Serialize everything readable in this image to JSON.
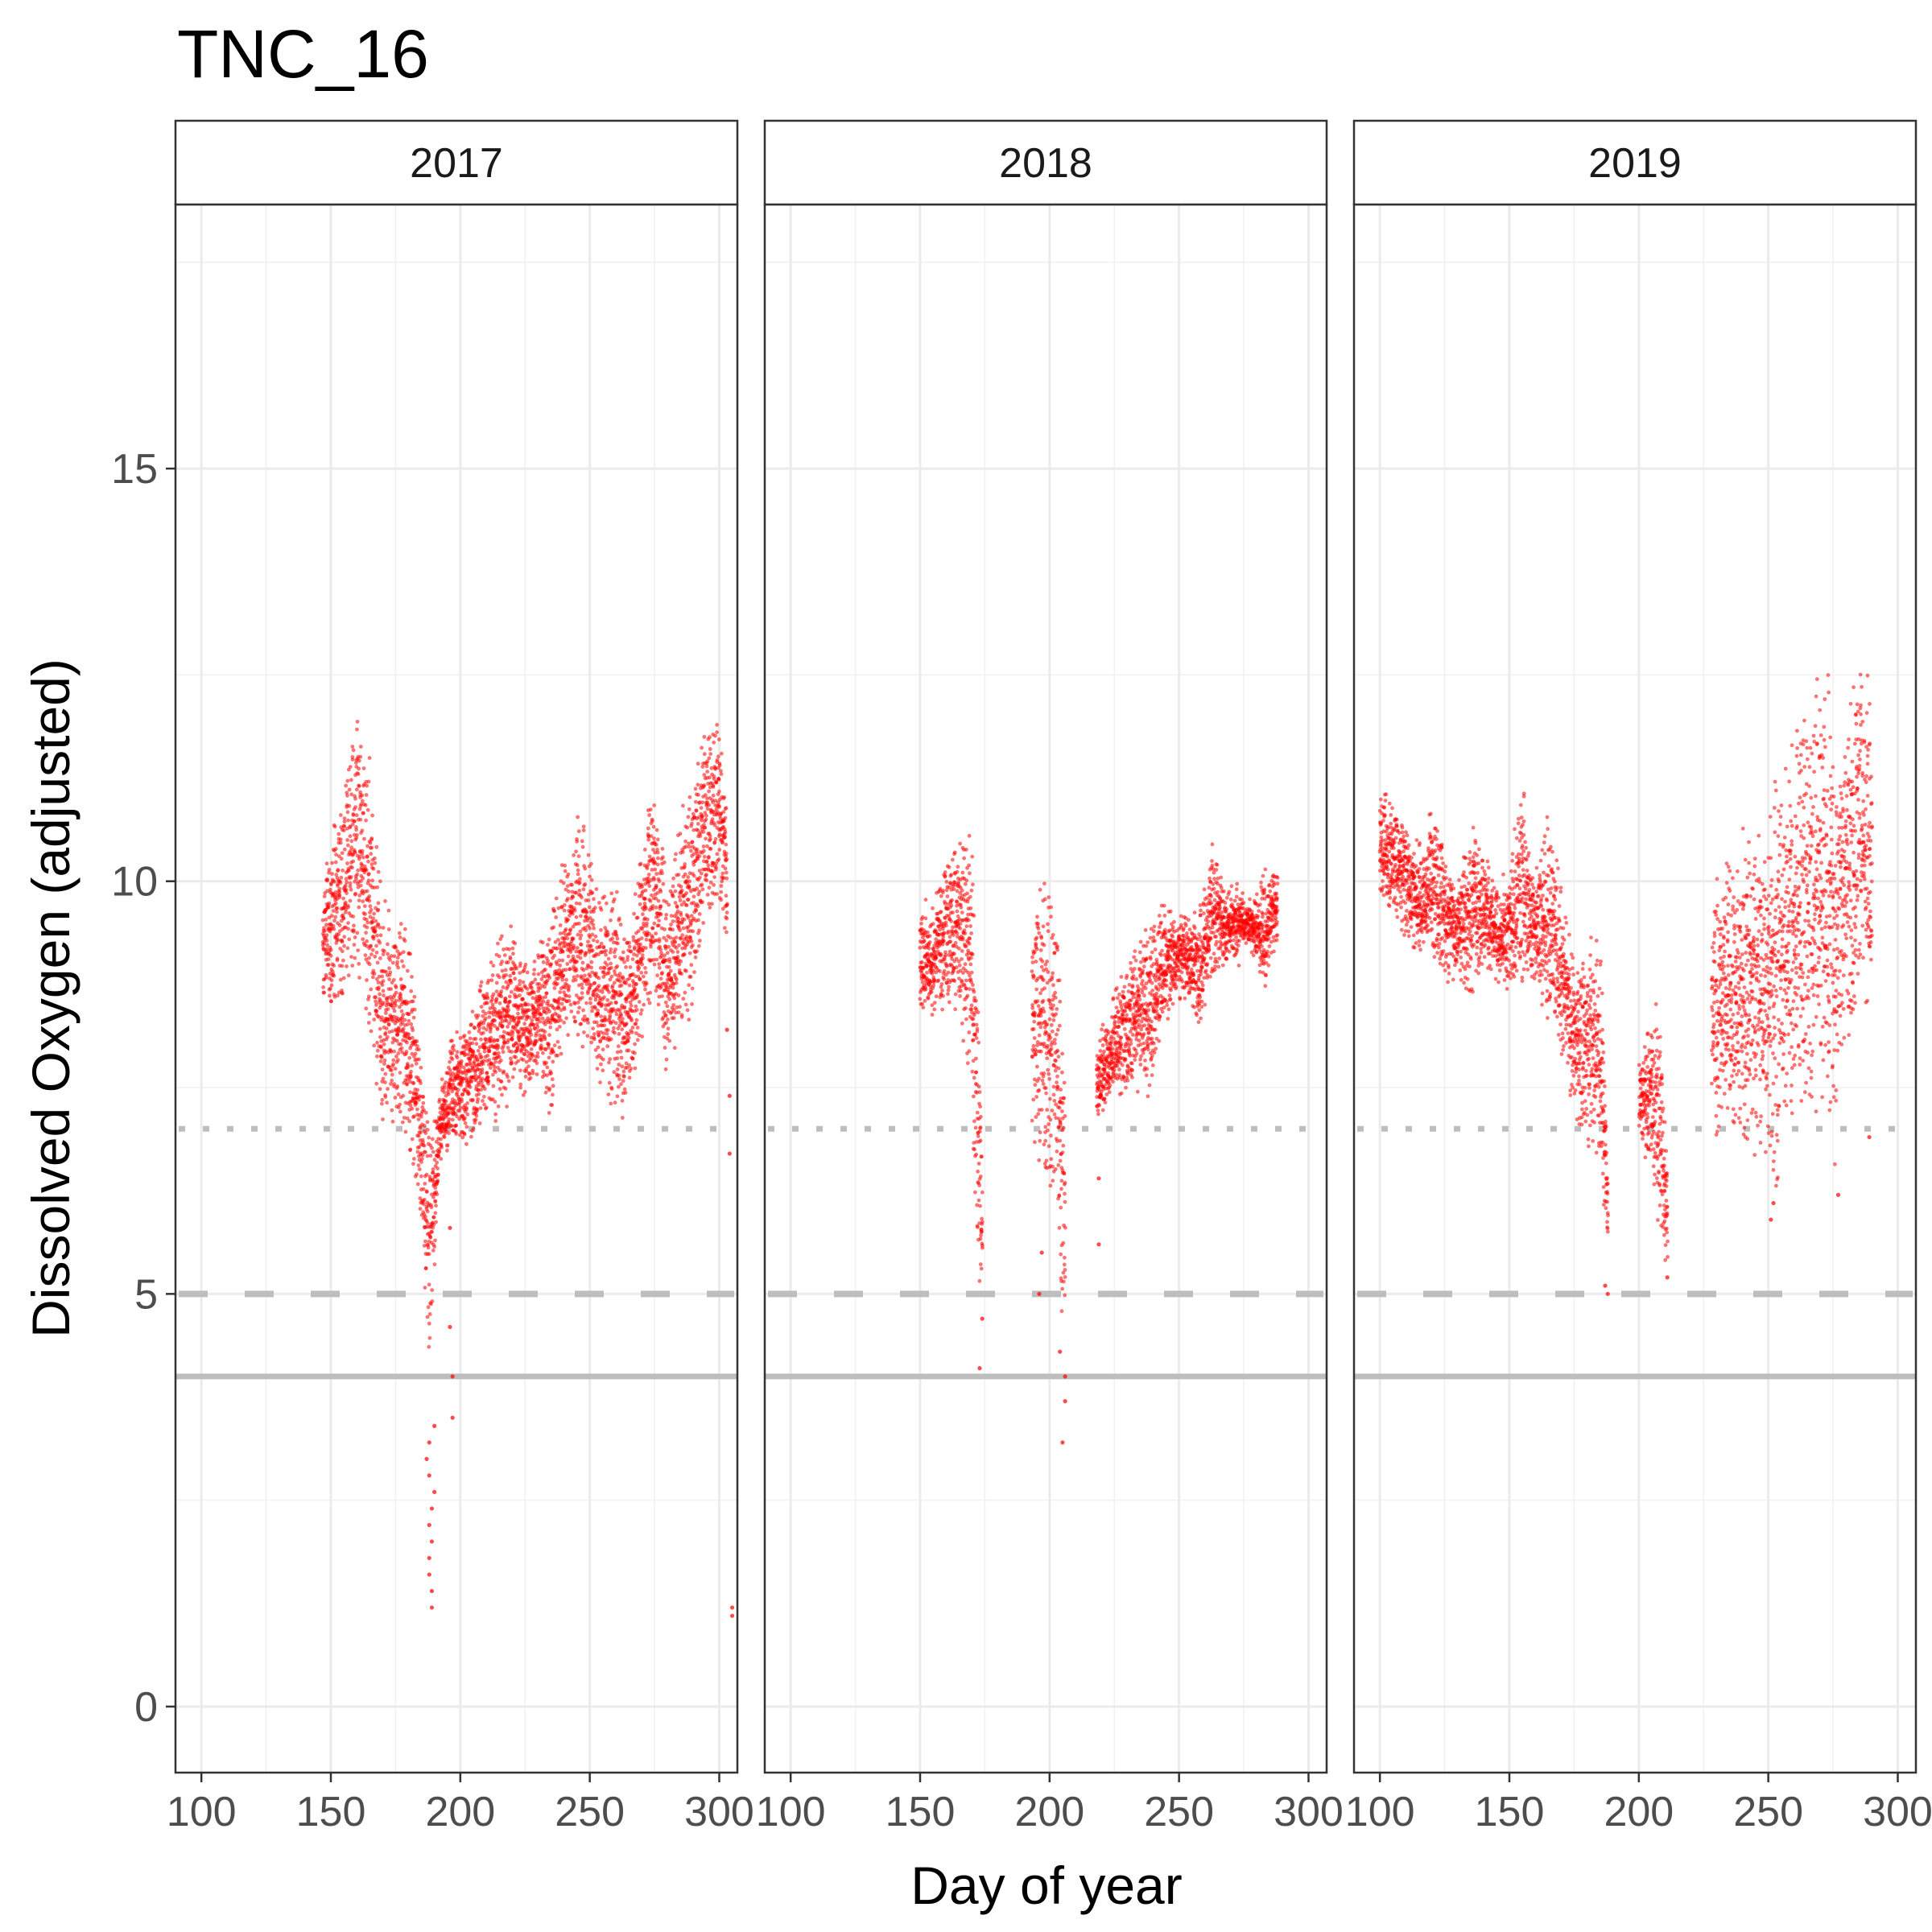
{
  "chart_data": {
    "type": "scatter",
    "title": "TNC_16",
    "xlabel": "Day of year",
    "ylabel": "Dissolved Oxygen (adjusted)",
    "xlim": [
      90,
      307
    ],
    "ylim": [
      -0.8,
      18.2
    ],
    "x_ticks": [
      100,
      150,
      200,
      250,
      300
    ],
    "y_ticks": [
      0,
      5,
      10,
      15
    ],
    "grid": true,
    "point_color": "#ff0000",
    "reference_lines": [
      {
        "y": 7,
        "style": "dotted",
        "color": "#bebebe"
      },
      {
        "y": 5,
        "style": "dashed",
        "color": "#bebebe"
      },
      {
        "y": 4,
        "style": "solid",
        "color": "#bebebe"
      }
    ],
    "panels": [
      {
        "label": "2017",
        "x_range": [
          147,
          303
        ],
        "envelope": [
          [
            147,
            8.5,
            10.0
          ],
          [
            150,
            8.2,
            10.8
          ],
          [
            155,
            8.4,
            11.3
          ],
          [
            160,
            9.0,
            12.3
          ],
          [
            165,
            8.0,
            11.5
          ],
          [
            170,
            6.8,
            10.0
          ],
          [
            175,
            7.0,
            9.5
          ],
          [
            180,
            6.8,
            9.7
          ],
          [
            185,
            5.8,
            8.0
          ],
          [
            188,
            4.0,
            7.2
          ],
          [
            192,
            6.5,
            7.5
          ],
          [
            197,
            6.8,
            8.2
          ],
          [
            205,
            6.8,
            8.5
          ],
          [
            210,
            7.0,
            9.0
          ],
          [
            215,
            7.0,
            9.5
          ],
          [
            220,
            7.2,
            9.6
          ],
          [
            225,
            7.2,
            9.0
          ],
          [
            230,
            7.5,
            9.4
          ],
          [
            235,
            7.0,
            9.8
          ],
          [
            240,
            7.8,
            10.4
          ],
          [
            245,
            8.0,
            10.9
          ],
          [
            250,
            8.0,
            10.5
          ],
          [
            255,
            7.2,
            10.0
          ],
          [
            260,
            7.0,
            10.0
          ],
          [
            265,
            7.2,
            9.5
          ],
          [
            270,
            8.0,
            10.5
          ],
          [
            275,
            8.5,
            11.5
          ],
          [
            280,
            7.5,
            10.0
          ],
          [
            285,
            8.0,
            10.8
          ],
          [
            290,
            8.5,
            11.5
          ],
          [
            295,
            9.5,
            12.0
          ],
          [
            300,
            9.5,
            12.2
          ],
          [
            303,
            9.0,
            11.0
          ]
        ],
        "outliers": [
          [
            188,
            2.8
          ],
          [
            188,
            2.2
          ],
          [
            188,
            1.8
          ],
          [
            189,
            1.2
          ],
          [
            189,
            1.4
          ],
          [
            188,
            3.2
          ],
          [
            190,
            3.4
          ],
          [
            190,
            2.6
          ],
          [
            188,
            1.6
          ],
          [
            189,
            2.0
          ],
          [
            187,
            3.0
          ],
          [
            189,
            2.4
          ],
          [
            195,
            6.8
          ],
          [
            196,
            5.8
          ],
          [
            196,
            4.6
          ],
          [
            197,
            4.0
          ],
          [
            197,
            3.5
          ],
          [
            303,
            8.2
          ],
          [
            304,
            7.4
          ],
          [
            304,
            6.7
          ],
          [
            305,
            1.2
          ],
          [
            305,
            1.1
          ]
        ]
      },
      {
        "label": "2018",
        "x_range": [
          150,
          288
        ],
        "envelope": [
          [
            150,
            8.3,
            9.7
          ],
          [
            155,
            8.3,
            9.8
          ],
          [
            160,
            8.3,
            10.5
          ],
          [
            165,
            8.5,
            10.6
          ],
          [
            170,
            7.0,
            10.9
          ],
          [
            172,
            5.5,
            9.0
          ],
          [
            174,
            4.5,
            7.0
          ],
          [
            193,
            6.5,
            10.0
          ],
          [
            198,
            6.3,
            10.4
          ],
          [
            203,
            5.5,
            9.8
          ],
          [
            206,
            4.2,
            7.5
          ],
          [
            218,
            7.0,
            8.0
          ],
          [
            222,
            7.2,
            8.4
          ],
          [
            228,
            7.3,
            9.0
          ],
          [
            233,
            7.5,
            9.3
          ],
          [
            238,
            7.2,
            9.6
          ],
          [
            243,
            8.0,
            9.8
          ],
          [
            248,
            8.5,
            9.7
          ],
          [
            253,
            8.6,
            9.6
          ],
          [
            258,
            8.2,
            9.8
          ],
          [
            263,
            8.8,
            10.6
          ],
          [
            268,
            9.0,
            9.9
          ],
          [
            273,
            9.0,
            10.0
          ],
          [
            278,
            9.2,
            9.7
          ],
          [
            283,
            8.6,
            10.2
          ],
          [
            288,
            9.2,
            10.2
          ]
        ],
        "outliers": [
          [
            173,
            4.1
          ],
          [
            174,
            4.7
          ],
          [
            205,
            3.2
          ],
          [
            206,
            3.7
          ],
          [
            206,
            4.0
          ],
          [
            204,
            4.3
          ],
          [
            197,
            5.5
          ],
          [
            196,
            5.0
          ],
          [
            219,
            5.6
          ],
          [
            219,
            6.4
          ]
        ]
      },
      {
        "label": "2019",
        "x_range": [
          100,
          290
        ],
        "envelope": [
          [
            100,
            9.7,
            11.2
          ],
          [
            105,
            9.5,
            11.0
          ],
          [
            110,
            9.2,
            10.8
          ],
          [
            115,
            9.0,
            10.5
          ],
          [
            120,
            9.0,
            11.0
          ],
          [
            125,
            8.8,
            10.5
          ],
          [
            130,
            8.7,
            10.0
          ],
          [
            135,
            8.6,
            10.8
          ],
          [
            140,
            8.8,
            10.5
          ],
          [
            145,
            8.7,
            10.0
          ],
          [
            150,
            8.5,
            10.2
          ],
          [
            155,
            8.6,
            11.3
          ],
          [
            160,
            8.8,
            10.2
          ],
          [
            165,
            8.2,
            11.0
          ],
          [
            170,
            7.8,
            10.0
          ],
          [
            175,
            7.0,
            9.2
          ],
          [
            180,
            6.7,
            9.3
          ],
          [
            185,
            6.5,
            9.4
          ],
          [
            188,
            5.2,
            7.0
          ],
          [
            200,
            6.8,
            7.8
          ],
          [
            204,
            6.5,
            8.3
          ],
          [
            208,
            5.5,
            8.6
          ],
          [
            211,
            5.2,
            6.5
          ],
          [
            228,
            7.0,
            10.0
          ],
          [
            233,
            6.7,
            10.5
          ],
          [
            238,
            6.8,
            10.5
          ],
          [
            243,
            6.5,
            11.0
          ],
          [
            248,
            6.8,
            10.5
          ],
          [
            253,
            6.2,
            11.5
          ],
          [
            258,
            7.0,
            11.8
          ],
          [
            263,
            6.8,
            12.6
          ],
          [
            268,
            7.0,
            12.5
          ],
          [
            273,
            7.1,
            12.7
          ],
          [
            276,
            6.5,
            12.0
          ],
          [
            280,
            8.0,
            12.0
          ],
          [
            285,
            8.0,
            13.0
          ],
          [
            290,
            8.0,
            12.5
          ]
        ],
        "outliers": [
          [
            188,
            5.0
          ],
          [
            187,
            5.1
          ],
          [
            211,
            5.2
          ],
          [
            251,
            5.9
          ],
          [
            252,
            6.1
          ],
          [
            277,
            6.2
          ],
          [
            289,
            6.9
          ]
        ]
      }
    ]
  }
}
